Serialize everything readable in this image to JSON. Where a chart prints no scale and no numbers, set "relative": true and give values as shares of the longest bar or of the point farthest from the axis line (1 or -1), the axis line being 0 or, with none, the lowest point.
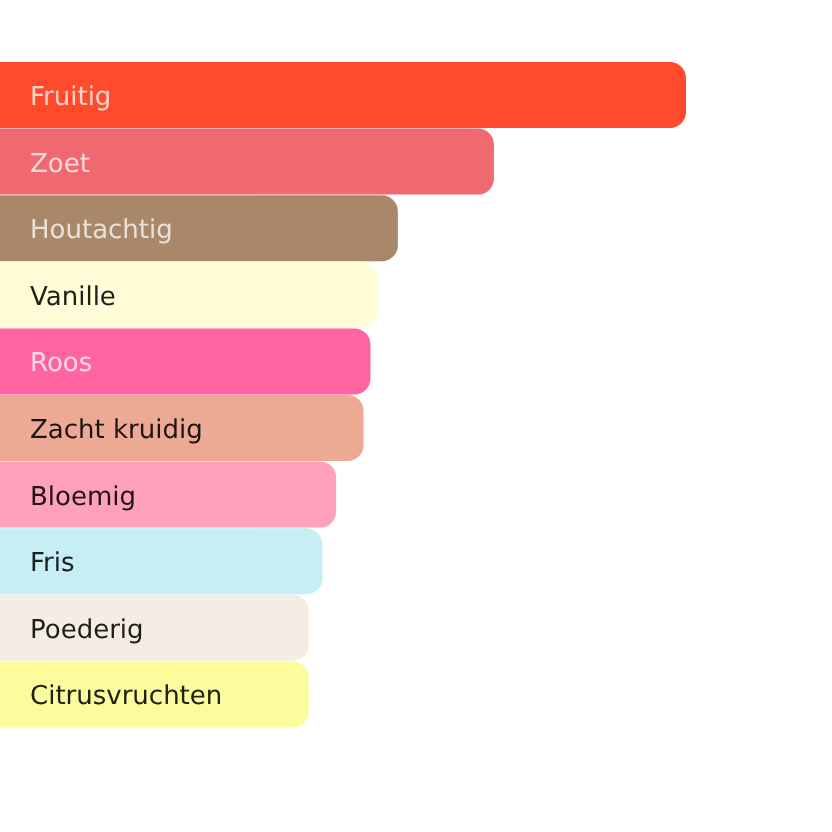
{
  "chart_data": {
    "type": "bar",
    "orientation": "horizontal",
    "relative": true,
    "categories": [
      "Fruitig",
      "Zoet",
      "Houtachtig",
      "Vanille",
      "Roos",
      "Zacht kruidig",
      "Bloemig",
      "Fris",
      "Poederig",
      "Citrusvruchten"
    ],
    "values": [
      1,
      0.72,
      0.58,
      0.55,
      0.54,
      0.53,
      0.49,
      0.47,
      0.45,
      0.45
    ],
    "colors": [
      "#ff4b2b",
      "#f06870",
      "#a88868",
      "#fffdd8",
      "#ff63a0",
      "#ecaa94",
      "#ffa0bd",
      "#c6eef4",
      "#f5ece4",
      "#fcfc9c"
    ]
  }
}
